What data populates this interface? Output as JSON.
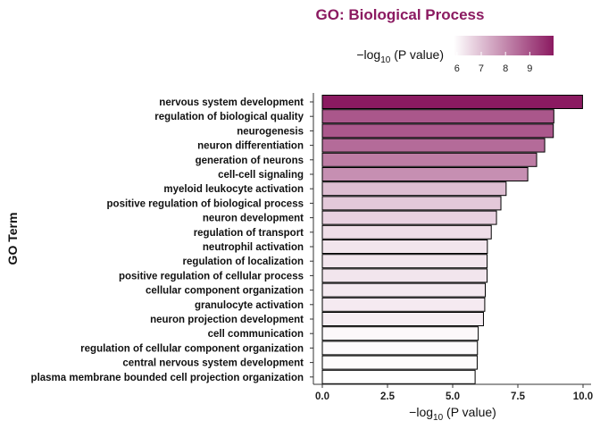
{
  "chart_data": {
    "type": "bar",
    "orientation": "horizontal",
    "title": "GO: Biological Process",
    "ylabel": "GO Term",
    "xlabel": {
      "prefix": "−log",
      "sub": "10",
      "suffix": " (P value)"
    },
    "xlim": [
      0,
      10
    ],
    "xticks": [
      "0.0",
      "2.5",
      "5.0",
      "7.5",
      "10.0"
    ],
    "categories": [
      "nervous system development",
      "regulation of biological quality",
      "neurogenesis",
      "neuron differentiation",
      "generation of neurons",
      "cell-cell signaling",
      "myeloid leukocyte activation",
      "positive regulation of biological process",
      "neuron development",
      "regulation of transport",
      "neutrophil activation",
      "regulation of localization",
      "positive regulation of cellular process",
      "cellular component organization",
      "granulocyte activation",
      "neuron projection development",
      "cell communication",
      "regulation of cellular component organization",
      "central nervous system development",
      "plasma membrane bounded cell projection organization"
    ],
    "values": [
      9.98,
      8.88,
      8.86,
      8.53,
      8.22,
      7.88,
      7.05,
      6.85,
      6.68,
      6.48,
      6.33,
      6.32,
      6.32,
      6.25,
      6.23,
      6.18,
      5.98,
      5.95,
      5.94,
      5.86
    ],
    "legend": {
      "title": {
        "prefix": "−log",
        "sub": "10",
        "suffix": " (P value)"
      },
      "ticks": [
        "6",
        "7",
        "8",
        "9"
      ],
      "range": [
        5.86,
        9.98
      ],
      "color_low": "#ffffff",
      "color_high": "#8b1a61"
    },
    "grid": false,
    "legend_position": "top"
  }
}
